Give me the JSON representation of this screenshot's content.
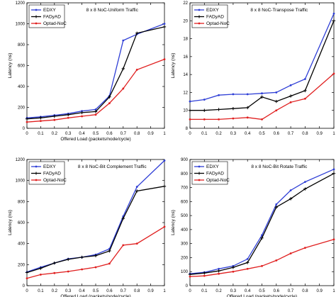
{
  "chart_data": [
    {
      "type": "line",
      "title": "8 x 8 NoC-Uniform Traffic",
      "xlabel": "Offered Load (packets/node/cycle)",
      "ylabel": "Latency (ns)",
      "xlim": [
        0,
        1
      ],
      "ylim": [
        0,
        1200
      ],
      "xticks": [
        0,
        0.1,
        0.2,
        0.3,
        0.4,
        0.5,
        0.6,
        0.7,
        0.8,
        0.9,
        1
      ],
      "xtick_labels": [
        "0",
        "0.1",
        "0.2",
        "0.3",
        "0.4",
        "0.5",
        "0.6",
        "0.7",
        "0.8",
        "0.9",
        "1"
      ],
      "yticks": [
        0,
        200,
        400,
        600,
        800,
        1000,
        1200
      ],
      "ytick_labels": [
        "0",
        "200",
        "400",
        "600",
        "800",
        "1000",
        "1200"
      ],
      "legend": "top-left",
      "x": [
        0,
        0.1,
        0.2,
        0.3,
        0.4,
        0.5,
        0.6,
        0.7,
        0.8,
        1
      ],
      "series": [
        {
          "name": "EDXY",
          "color": "#2f3fd6",
          "marker": "dot",
          "values": [
            100,
            110,
            125,
            140,
            165,
            180,
            310,
            840,
            900,
            1000
          ]
        },
        {
          "name": "FADyAD",
          "color": "#000000",
          "marker": "plus",
          "values": [
            90,
            100,
            115,
            130,
            150,
            160,
            300,
            570,
            910,
            970
          ]
        },
        {
          "name": "Optad-NoC",
          "color": "#e02020",
          "marker": "dot",
          "values": [
            60,
            70,
            80,
            100,
            115,
            130,
            240,
            380,
            560,
            660
          ]
        }
      ]
    },
    {
      "type": "line",
      "title": "8 x 8 NoC-Transpose Traffic",
      "xlabel": "",
      "ylabel": "Latency (ns)",
      "xlim": [
        0,
        1
      ],
      "ylim": [
        8,
        22
      ],
      "xticks": [
        0,
        0.1,
        0.2,
        0.3,
        0.4,
        0.5,
        0.6,
        0.7,
        0.8,
        0.9,
        1
      ],
      "xtick_labels": [
        "0",
        "0.1",
        "0.2",
        "0.3",
        "0.4",
        "0.5",
        "0.6",
        "0.7",
        "0.8",
        "0.9",
        "1"
      ],
      "yticks": [
        8,
        10,
        12,
        14,
        16,
        18,
        20,
        22
      ],
      "ytick_labels": [
        "8",
        "10",
        "12",
        "14",
        "16",
        "18",
        "20",
        "22"
      ],
      "legend": "top-left",
      "x": [
        0,
        0.1,
        0.2,
        0.3,
        0.4,
        0.5,
        0.6,
        0.7,
        0.8,
        1
      ],
      "series": [
        {
          "name": "EDXY",
          "color": "#2f3fd6",
          "marker": "dot",
          "values": [
            11.0,
            11.2,
            11.7,
            11.8,
            11.8,
            11.9,
            12.0,
            12.8,
            13.5,
            20.8
          ]
        },
        {
          "name": "FADyAD",
          "color": "#000000",
          "marker": "plus",
          "values": [
            10.0,
            10.0,
            10.1,
            10.2,
            10.3,
            11.5,
            11.0,
            11.6,
            12.2,
            20.0
          ]
        },
        {
          "name": "Optad-NoC",
          "color": "#e02020",
          "marker": "dot",
          "values": [
            9.0,
            9.0,
            9.0,
            9.1,
            9.2,
            9.0,
            10.0,
            10.9,
            11.3,
            14.1
          ]
        }
      ]
    },
    {
      "type": "line",
      "title": "8 x 8 NoC-Bit Complement Traffic",
      "xlabel": "Offered Load (packets/node/cycle)",
      "ylabel": "Latency (ns)",
      "xlim": [
        0,
        1
      ],
      "ylim": [
        0,
        1200
      ],
      "xticks": [
        0,
        0.1,
        0.2,
        0.3,
        0.4,
        0.5,
        0.6,
        0.7,
        0.8,
        0.9,
        1
      ],
      "xtick_labels": [
        "0",
        "0.1",
        "0.2",
        "0.3",
        "0.4",
        "0.5",
        "0.6",
        "0.7",
        "0.8",
        "0.9",
        "1"
      ],
      "yticks": [
        0,
        200,
        400,
        600,
        800,
        1000,
        1200
      ],
      "ytick_labels": [
        "0",
        "200",
        "400",
        "600",
        "800",
        "1000",
        "1200"
      ],
      "legend": "top-left",
      "x": [
        0,
        0.1,
        0.2,
        0.3,
        0.4,
        0.5,
        0.6,
        0.7,
        0.8,
        1
      ],
      "series": [
        {
          "name": "EDXY",
          "color": "#2f3fd6",
          "marker": "dot",
          "values": [
            130,
            175,
            215,
            255,
            270,
            295,
            350,
            660,
            940,
            1190
          ]
        },
        {
          "name": "FADyAD",
          "color": "#000000",
          "marker": "plus",
          "values": [
            125,
            165,
            215,
            250,
            270,
            285,
            330,
            640,
            900,
            945
          ]
        },
        {
          "name": "Optad-NoC",
          "color": "#e02020",
          "marker": "dot",
          "values": [
            70,
            105,
            120,
            135,
            155,
            175,
            210,
            385,
            400,
            560
          ]
        }
      ]
    },
    {
      "type": "line",
      "title": "8 x 8 NoC-Bit Rotate Traffic",
      "xlabel": "Offered Load (packets/node/cycle)",
      "ylabel": "Latency (ns)",
      "xlim": [
        0,
        1
      ],
      "ylim": [
        0,
        900
      ],
      "xticks": [
        0,
        0.1,
        0.2,
        0.3,
        0.4,
        0.5,
        0.6,
        0.7,
        0.8,
        0.9,
        1
      ],
      "xtick_labels": [
        "0",
        "0.1",
        "0.2",
        "0.3",
        "0.4",
        "0.5",
        "0.6",
        "0.7",
        "0.8",
        "0.9",
        "1"
      ],
      "yticks": [
        0,
        100,
        200,
        300,
        400,
        500,
        600,
        700,
        800,
        900
      ],
      "ytick_labels": [
        "0",
        "100",
        "200",
        "300",
        "400",
        "500",
        "600",
        "700",
        "800",
        "900"
      ],
      "legend": "top-left",
      "x": [
        0,
        0.1,
        0.2,
        0.3,
        0.4,
        0.5,
        0.6,
        0.7,
        0.8,
        1
      ],
      "series": [
        {
          "name": "EDXY",
          "color": "#2f3fd6",
          "marker": "dot",
          "values": [
            85,
            95,
            120,
            140,
            190,
            360,
            580,
            680,
            740,
            830
          ]
        },
        {
          "name": "FADyAD",
          "color": "#000000",
          "marker": "plus",
          "values": [
            80,
            90,
            105,
            130,
            165,
            340,
            560,
            620,
            690,
            800
          ]
        },
        {
          "name": "Optad-NoC",
          "color": "#e02020",
          "marker": "dot",
          "values": [
            65,
            70,
            85,
            100,
            120,
            140,
            180,
            230,
            270,
            330
          ]
        }
      ]
    }
  ]
}
